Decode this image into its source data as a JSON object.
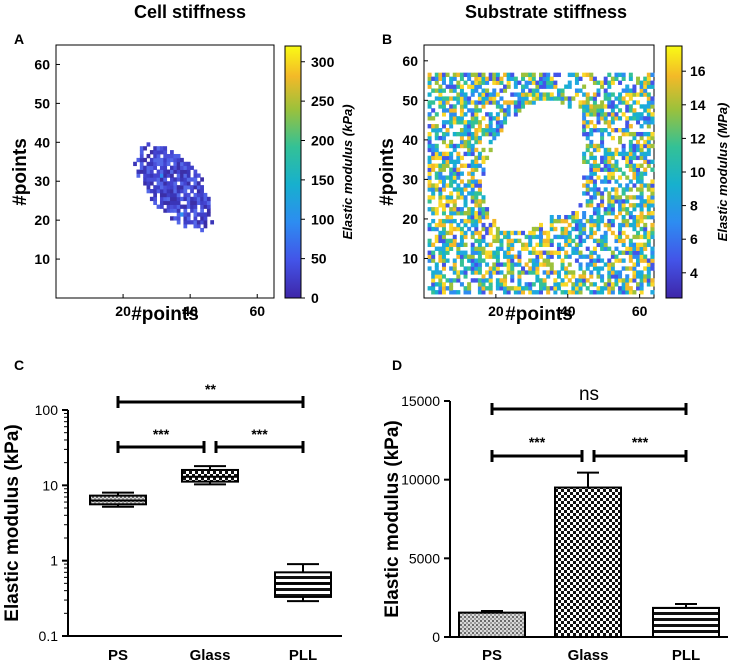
{
  "chart_data": [
    {
      "id": "A",
      "type": "heatmap",
      "panel_label": "A",
      "title": "Cell stiffness",
      "xlabel": "#points",
      "ylabel": "#points",
      "xlim": [
        0,
        65
      ],
      "ylim": [
        0,
        65
      ],
      "xticks": [
        "20",
        "40",
        "60"
      ],
      "yticks": [
        "10",
        "20",
        "30",
        "40",
        "50",
        "60"
      ],
      "colorbar": {
        "label": "Elastic modulus (kPa)",
        "min": 0,
        "max": 320,
        "ticks": [
          "0",
          "50",
          "100",
          "150",
          "200",
          "250",
          "300"
        ]
      }
    },
    {
      "id": "B",
      "type": "heatmap",
      "panel_label": "B",
      "title": "Substrate stiffness",
      "xlabel": "#points",
      "ylabel": "#points",
      "xlim": [
        0,
        64
      ],
      "ylim": [
        0,
        64
      ],
      "xticks": [
        "20",
        "40",
        "60"
      ],
      "yticks": [
        "10",
        "20",
        "30",
        "40",
        "50",
        "60"
      ],
      "colorbar": {
        "label": "Elastic modulus (MPa)",
        "min": 2.5,
        "max": 17.5,
        "ticks": [
          "4",
          "6",
          "8",
          "10",
          "12",
          "14",
          "16"
        ]
      }
    },
    {
      "id": "C",
      "type": "box",
      "panel_label": "C",
      "ylabel": "Elastic modulus (kPa)",
      "yscale": "log",
      "ylim": [
        0.1,
        100
      ],
      "yticks": [
        "0.1",
        "1",
        "10",
        "100"
      ],
      "categories": [
        "PS",
        "Glass",
        "PLL"
      ],
      "boxes": [
        {
          "category": "PS",
          "min": 5.2,
          "q1": 5.6,
          "median": 6.3,
          "q3": 7.3,
          "max": 8.0
        },
        {
          "category": "Glass",
          "min": 10.3,
          "q1": 11.2,
          "median": 13.0,
          "q3": 16.0,
          "max": 18.0
        },
        {
          "category": "PLL",
          "min": 0.29,
          "q1": 0.33,
          "median": 0.5,
          "q3": 0.7,
          "max": 0.9
        }
      ],
      "significance": [
        {
          "from": "PS",
          "to": "Glass",
          "label": "***"
        },
        {
          "from": "Glass",
          "to": "PLL",
          "label": "***"
        },
        {
          "from": "PS",
          "to": "PLL",
          "label": "**"
        }
      ]
    },
    {
      "id": "D",
      "type": "bar",
      "panel_label": "D",
      "ylabel": "Elastic modulus (kPa)",
      "ylim": [
        0,
        15000
      ],
      "yticks": [
        "0",
        "5000",
        "10000",
        "15000"
      ],
      "categories": [
        "PS",
        "Glass",
        "PLL"
      ],
      "values": [
        1550,
        9500,
        1850
      ],
      "errors": [
        100,
        950,
        250
      ],
      "significance": [
        {
          "from": "PS",
          "to": "Glass",
          "label": "***"
        },
        {
          "from": "Glass",
          "to": "PLL",
          "label": "***"
        },
        {
          "from": "PS",
          "to": "PLL",
          "label": "ns"
        }
      ]
    }
  ]
}
